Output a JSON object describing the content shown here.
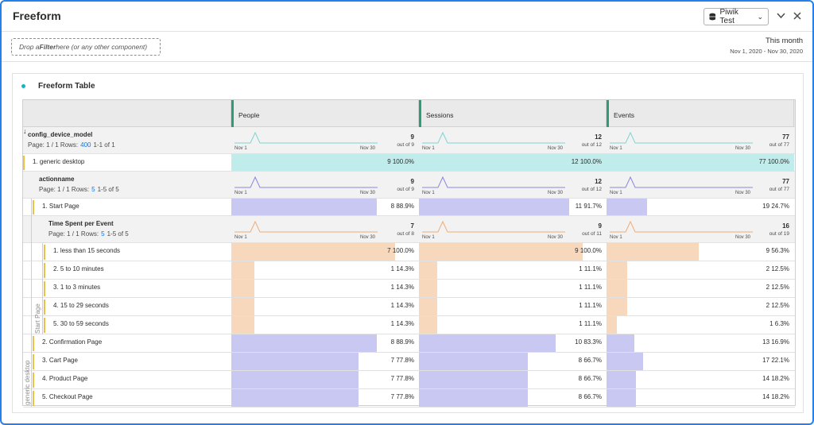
{
  "app": {
    "title": "Freeform"
  },
  "header": {
    "report_suite": "Piwik Test",
    "collapse_icon": "chevron-down-icon",
    "close_icon": "close-icon"
  },
  "filter": {
    "prefix": "Drop a ",
    "bold": "Filter",
    "suffix": " here (or any other component)"
  },
  "date_range": {
    "title": "This month",
    "range": "Nov 1, 2020 - Nov 30, 2020"
  },
  "panel": {
    "title": "Freeform Table"
  },
  "columns": [
    {
      "label": "People"
    },
    {
      "label": "Sessions"
    },
    {
      "label": "Events"
    }
  ],
  "colors": {
    "teal": "#c1ecec",
    "teal_line": "#7fd4d4",
    "purple": "#c9c8f2",
    "purple_line": "#8a86e0",
    "peach": "#f7d8bc",
    "peach_line": "#efad78",
    "green": "#2d9d78",
    "yellow": "#e8c04a"
  },
  "dim1": {
    "name": "config_device_model",
    "page": "Page: 1 / 1  Rows:",
    "rows": "400",
    "range": "1-1 of 1",
    "sort_icon": "sort-down-icon",
    "totals": [
      {
        "value": "9",
        "sub": "out of 9"
      },
      {
        "value": "12",
        "sub": "out of 12"
      },
      {
        "value": "77",
        "sub": "out of 77"
      }
    ],
    "spark_start": "Nov 1",
    "spark_end": "Nov 30"
  },
  "row1": {
    "label": "1. generic desktop",
    "cells": [
      "9 100.0%",
      "12 100.0%",
      "77 100.0%"
    ],
    "fills": [
      1,
      1,
      1
    ]
  },
  "dim2": {
    "name": "actionname",
    "page": "Page: 1 / 1  Rows:",
    "rows": "5",
    "range": "1-5 of 5",
    "totals": [
      {
        "value": "9",
        "sub": "out of 9"
      },
      {
        "value": "12",
        "sub": "out of 12"
      },
      {
        "value": "77",
        "sub": "out of 77"
      }
    ],
    "spark_start": "Nov 1",
    "spark_end": "Nov 30"
  },
  "row_start": {
    "label": "1. Start Page",
    "cells": [
      [
        "8",
        "88.9%"
      ],
      [
        "11",
        "91.7%"
      ],
      [
        "19",
        "24.7%"
      ]
    ],
    "fills": [
      0.889,
      0.917,
      0.247
    ]
  },
  "dim3": {
    "name": "Time Spent per Event",
    "page": "Page: 1 / 1  Rows:",
    "rows": "5",
    "range": "1-5 of 5",
    "totals": [
      {
        "value": "7",
        "sub": "out of 8"
      },
      {
        "value": "9",
        "sub": "out of 11"
      },
      {
        "value": "16",
        "sub": "out of 19"
      }
    ],
    "spark_start": "Nov 1",
    "spark_end": "Nov 30"
  },
  "time_rows": [
    {
      "label": "1. less than 15 seconds",
      "cells": [
        [
          "7",
          "100.0%"
        ],
        [
          "9",
          "100.0%"
        ],
        [
          "9",
          "56.3%"
        ]
      ],
      "fills": [
        1,
        1,
        0.563
      ]
    },
    {
      "label": "2. 5 to 10 minutes",
      "cells": [
        [
          "1",
          "14.3%"
        ],
        [
          "1",
          "11.1%"
        ],
        [
          "2",
          "12.5%"
        ]
      ],
      "fills": [
        0.143,
        0.111,
        0.125
      ]
    },
    {
      "label": "3. 1 to 3 minutes",
      "cells": [
        [
          "1",
          "14.3%"
        ],
        [
          "1",
          "11.1%"
        ],
        [
          "2",
          "12.5%"
        ]
      ],
      "fills": [
        0.143,
        0.111,
        0.125
      ]
    },
    {
      "label": "4. 15 to 29 seconds",
      "cells": [
        [
          "1",
          "14.3%"
        ],
        [
          "1",
          "11.1%"
        ],
        [
          "2",
          "12.5%"
        ]
      ],
      "fills": [
        0.143,
        0.111,
        0.125
      ]
    },
    {
      "label": "5. 30 to 59 seconds",
      "cells": [
        [
          "1",
          "14.3%"
        ],
        [
          "1",
          "11.1%"
        ],
        [
          "1",
          "6.3%"
        ]
      ],
      "fills": [
        0.143,
        0.111,
        0.063
      ]
    }
  ],
  "action_rows": [
    {
      "label": "2. Confirmation Page",
      "cells": [
        [
          "8",
          "88.9%"
        ],
        [
          "10",
          "83.3%"
        ],
        [
          "13",
          "16.9%"
        ]
      ],
      "fills": [
        0.889,
        0.833,
        0.169
      ]
    },
    {
      "label": "3. Cart Page",
      "cells": [
        [
          "7",
          "77.8%"
        ],
        [
          "8",
          "66.7%"
        ],
        [
          "17",
          "22.1%"
        ]
      ],
      "fills": [
        0.778,
        0.667,
        0.221
      ]
    },
    {
      "label": "4. Product Page",
      "cells": [
        [
          "7",
          "77.8%"
        ],
        [
          "8",
          "66.7%"
        ],
        [
          "14",
          "18.2%"
        ]
      ],
      "fills": [
        0.778,
        0.667,
        0.182
      ]
    },
    {
      "label": "5. Checkout Page",
      "cells": [
        [
          "7",
          "77.8%"
        ],
        [
          "8",
          "66.7%"
        ],
        [
          "14",
          "18.2%"
        ]
      ],
      "fills": [
        0.778,
        0.667,
        0.182
      ]
    }
  ],
  "vertical_labels": {
    "start_page": "Start Page",
    "generic_desktop": "generic desktop"
  }
}
